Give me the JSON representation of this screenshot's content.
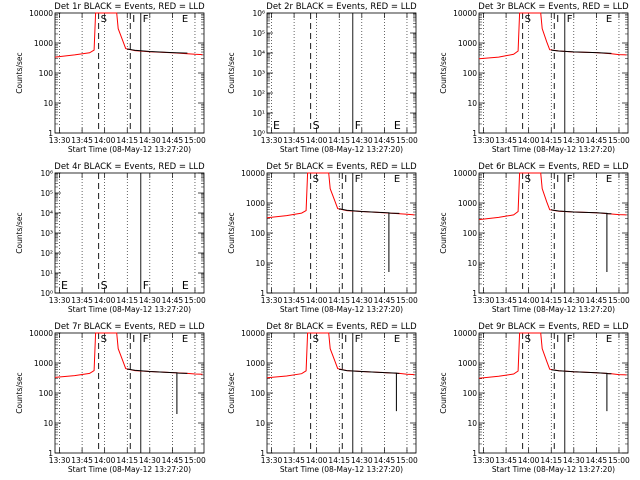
{
  "colors": {
    "events": "#000000",
    "lld": "#ff0000",
    "axis": "#000000",
    "background": "#ffffff"
  },
  "chart_data": [
    {
      "title": "Det 1r BLACK = Events, RED = LLD",
      "type": "line",
      "scale": "log",
      "ylim": [
        1,
        10000
      ],
      "yticks": [
        "1",
        "10",
        "100",
        "1000",
        "10000"
      ],
      "ylabel": "Counts/sec",
      "xlabel": "Start Time (08-May-12 13:27:20)",
      "xticks": [
        "13:30",
        "13:45",
        "14:00",
        "14:15",
        "14:30",
        "14:45",
        "15:00"
      ],
      "xlim": [
        "13:27",
        "15:06"
      ],
      "markers": [
        {
          "label": "S",
          "time": "13:56"
        },
        {
          "label": "I",
          "time": "14:17"
        },
        {
          "label": "F",
          "time": "14:24"
        },
        {
          "label": "E",
          "time": "14:50"
        }
      ],
      "series": [
        {
          "color": "red",
          "x": [
            "13:27",
            "13:40",
            "13:50",
            "13:53",
            "13:54",
            "14:08",
            "14:09",
            "14:12",
            "14:14",
            "14:20",
            "14:30",
            "14:45",
            "14:55",
            "15:00",
            "15:05"
          ],
          "y": [
            340,
            400,
            470,
            580,
            10000,
            10000,
            3000,
            1200,
            650,
            560,
            510,
            470,
            440,
            420,
            410
          ]
        },
        {
          "color": "black",
          "x": [
            "14:15",
            "14:20",
            "14:30",
            "14:45",
            "14:55"
          ],
          "y": [
            630,
            570,
            520,
            480,
            460
          ]
        }
      ]
    },
    {
      "title": "Det 2r BLACK = Events, RED = LLD",
      "type": "line",
      "scale": "log",
      "ylim": [
        1,
        1000000
      ],
      "yticks": [
        "10⁰",
        "10¹",
        "10²",
        "10³",
        "10⁴",
        "10⁵",
        "10⁶"
      ],
      "ylabel": "Counts/sec",
      "xlabel": "Start Time (08-May-12 13:27:20)",
      "xticks": [
        "13:30",
        "13:45",
        "14:00",
        "14:15",
        "14:30",
        "14:45",
        "15:00"
      ],
      "xlim": [
        "13:27",
        "15:06"
      ],
      "markers": [
        {
          "label": "E",
          "time": "13:27"
        },
        {
          "label": "S",
          "time": "13:56"
        },
        {
          "label": "F",
          "time": "14:24"
        },
        {
          "label": "E",
          "time": "14:50"
        }
      ],
      "series": []
    },
    {
      "title": "Det 3r BLACK = Events, RED = LLD",
      "type": "line",
      "scale": "log",
      "ylim": [
        1,
        10000
      ],
      "yticks": [
        "1",
        "10",
        "100",
        "1000",
        "10000"
      ],
      "ylabel": "Counts/sec",
      "xlabel": "Start Time (08-May-12 13:27:20)",
      "xticks": [
        "13:30",
        "13:45",
        "14:00",
        "14:15",
        "14:30",
        "14:45",
        "15:00"
      ],
      "xlim": [
        "13:27",
        "15:06"
      ],
      "markers": [
        {
          "label": "S",
          "time": "13:56"
        },
        {
          "label": "I",
          "time": "14:17"
        },
        {
          "label": "F",
          "time": "14:24"
        },
        {
          "label": "E",
          "time": "14:50"
        }
      ],
      "series": [
        {
          "color": "red",
          "x": [
            "13:27",
            "13:40",
            "13:50",
            "13:53",
            "13:54",
            "14:08",
            "14:09",
            "14:12",
            "14:14",
            "14:20",
            "14:30",
            "14:45",
            "14:55",
            "15:00",
            "15:05"
          ],
          "y": [
            300,
            340,
            420,
            540,
            10000,
            10000,
            3000,
            1100,
            600,
            540,
            500,
            480,
            440,
            410,
            400
          ]
        },
        {
          "color": "black",
          "x": [
            "14:15",
            "14:20",
            "14:30",
            "14:45",
            "14:55"
          ],
          "y": [
            580,
            540,
            505,
            480,
            450
          ]
        }
      ]
    },
    {
      "title": "Det 4r BLACK = Events, RED = LLD",
      "type": "line",
      "scale": "log",
      "ylim": [
        1,
        1000000
      ],
      "yticks": [
        "10⁰",
        "10¹",
        "10²",
        "10³",
        "10⁴",
        "10⁵",
        "10⁶"
      ],
      "ylabel": "Counts/sec",
      "xlabel": "Start Time (08-May-12 13:27:20)",
      "xticks": [
        "13:30",
        "13:45",
        "14:00",
        "14:15",
        "14:30",
        "14:45",
        "15:00"
      ],
      "xlim": [
        "13:27",
        "15:06"
      ],
      "markers": [
        {
          "label": "E",
          "time": "13:27"
        },
        {
          "label": "S",
          "time": "13:56"
        },
        {
          "label": "F",
          "time": "14:24"
        },
        {
          "label": "E",
          "time": "14:50"
        }
      ],
      "series": []
    },
    {
      "title": "Det 5r BLACK = Events, RED = LLD",
      "type": "line",
      "scale": "log",
      "ylim": [
        1,
        10000
      ],
      "yticks": [
        "1",
        "10",
        "100",
        "1000",
        "10000"
      ],
      "ylabel": "Counts/sec",
      "xlabel": "Start Time (08-May-12 13:27:20)",
      "xticks": [
        "13:30",
        "13:45",
        "14:00",
        "14:15",
        "14:30",
        "14:45",
        "15:00"
      ],
      "xlim": [
        "13:27",
        "15:06"
      ],
      "markers": [
        {
          "label": "S",
          "time": "13:56"
        },
        {
          "label": "I",
          "time": "14:17"
        },
        {
          "label": "F",
          "time": "14:24"
        },
        {
          "label": "E",
          "time": "14:50"
        }
      ],
      "series": [
        {
          "color": "red",
          "x": [
            "13:27",
            "13:40",
            "13:50",
            "13:53",
            "13:54",
            "14:08",
            "14:09",
            "14:12",
            "14:14",
            "14:20",
            "14:30",
            "14:45",
            "14:55",
            "15:00",
            "15:05"
          ],
          "y": [
            320,
            380,
            460,
            560,
            10000,
            10000,
            3000,
            1200,
            650,
            560,
            520,
            470,
            440,
            420,
            400
          ]
        },
        {
          "color": "black",
          "x": [
            "14:15",
            "14:20",
            "14:30",
            "14:45",
            "14:48",
            "14:48",
            "14:48",
            "14:49",
            "14:55"
          ],
          "y": [
            640,
            570,
            520,
            480,
            470,
            5,
            470,
            460,
            450
          ]
        }
      ]
    },
    {
      "title": "Det 6r BLACK = Events, RED = LLD",
      "type": "line",
      "scale": "log",
      "ylim": [
        1,
        10000
      ],
      "yticks": [
        "1",
        "10",
        "100",
        "1000",
        "10000"
      ],
      "ylabel": "Counts/sec",
      "xlabel": "Start Time (08-May-12 13:27:20)",
      "xticks": [
        "13:30",
        "13:45",
        "14:00",
        "14:15",
        "14:30",
        "14:45",
        "15:00"
      ],
      "xlim": [
        "13:27",
        "15:06"
      ],
      "markers": [
        {
          "label": "S",
          "time": "13:56"
        },
        {
          "label": "I",
          "time": "14:17"
        },
        {
          "label": "F",
          "time": "14:24"
        },
        {
          "label": "E",
          "time": "14:50"
        }
      ],
      "series": [
        {
          "color": "red",
          "x": [
            "13:27",
            "13:40",
            "13:50",
            "13:53",
            "13:54",
            "14:08",
            "14:09",
            "14:12",
            "14:14",
            "14:20",
            "14:30",
            "14:45",
            "14:55",
            "15:00",
            "15:05"
          ],
          "y": [
            280,
            330,
            400,
            520,
            10000,
            10000,
            3000,
            1100,
            600,
            530,
            500,
            470,
            430,
            410,
            400
          ]
        },
        {
          "color": "black",
          "x": [
            "14:15",
            "14:20",
            "14:30",
            "14:45",
            "14:52",
            "14:52",
            "14:52",
            "14:53",
            "14:55"
          ],
          "y": [
            590,
            540,
            500,
            470,
            450,
            5,
            450,
            440,
            440
          ]
        }
      ]
    },
    {
      "title": "Det 7r BLACK = Events, RED = LLD",
      "type": "line",
      "scale": "log",
      "ylim": [
        1,
        10000
      ],
      "yticks": [
        "1",
        "10",
        "100",
        "1000",
        "10000"
      ],
      "ylabel": "Counts/sec",
      "xlabel": "Start Time (08-May-12 13:27:20)",
      "xticks": [
        "13:30",
        "13:45",
        "14:00",
        "14:15",
        "14:30",
        "14:45",
        "15:00"
      ],
      "xlim": [
        "13:27",
        "15:06"
      ],
      "markers": [
        {
          "label": "S",
          "time": "13:56"
        },
        {
          "label": "I",
          "time": "14:17"
        },
        {
          "label": "F",
          "time": "14:24"
        },
        {
          "label": "E",
          "time": "14:50"
        }
      ],
      "series": [
        {
          "color": "red",
          "x": [
            "13:27",
            "13:40",
            "13:50",
            "13:53",
            "13:54",
            "14:08",
            "14:09",
            "14:12",
            "14:14",
            "14:20",
            "14:30",
            "14:45",
            "14:55",
            "15:00",
            "15:05"
          ],
          "y": [
            330,
            380,
            450,
            560,
            10000,
            10000,
            3000,
            1200,
            650,
            560,
            520,
            480,
            450,
            430,
            420
          ]
        },
        {
          "color": "black",
          "x": [
            "14:15",
            "14:20",
            "14:30",
            "14:45",
            "14:48",
            "14:48",
            "14:48",
            "14:49",
            "14:55"
          ],
          "y": [
            630,
            570,
            520,
            480,
            470,
            20,
            470,
            460,
            450
          ]
        }
      ]
    },
    {
      "title": "Det 8r BLACK = Events, RED = LLD",
      "type": "line",
      "scale": "log",
      "ylim": [
        1,
        10000
      ],
      "yticks": [
        "1",
        "10",
        "100",
        "1000",
        "10000"
      ],
      "ylabel": "Counts/sec",
      "xlabel": "Start Time (08-May-12 13:27:20)",
      "xticks": [
        "13:30",
        "13:45",
        "14:00",
        "14:15",
        "14:30",
        "14:45",
        "15:00"
      ],
      "xlim": [
        "13:27",
        "15:06"
      ],
      "markers": [
        {
          "label": "S",
          "time": "13:56"
        },
        {
          "label": "I",
          "time": "14:17"
        },
        {
          "label": "F",
          "time": "14:24"
        },
        {
          "label": "E",
          "time": "14:50"
        }
      ],
      "series": [
        {
          "color": "red",
          "x": [
            "13:27",
            "13:40",
            "13:50",
            "13:53",
            "13:54",
            "14:08",
            "14:09",
            "14:12",
            "14:14",
            "14:20",
            "14:30",
            "14:45",
            "14:55",
            "15:00",
            "15:05"
          ],
          "y": [
            320,
            370,
            440,
            550,
            10000,
            10000,
            3000,
            1200,
            650,
            560,
            520,
            480,
            450,
            420,
            410
          ]
        },
        {
          "color": "black",
          "x": [
            "14:15",
            "14:20",
            "14:30",
            "14:45",
            "14:53",
            "14:53",
            "14:53",
            "14:54",
            "14:55"
          ],
          "y": [
            620,
            560,
            520,
            480,
            460,
            25,
            460,
            450,
            450
          ]
        }
      ]
    },
    {
      "title": "Det 9r BLACK = Events, RED = LLD",
      "type": "line",
      "scale": "log",
      "ylim": [
        1,
        10000
      ],
      "yticks": [
        "1",
        "10",
        "100",
        "1000",
        "10000"
      ],
      "ylabel": "Counts/sec",
      "xlabel": "Start Time (08-May-12 13:27:20)",
      "xticks": [
        "13:30",
        "13:45",
        "14:00",
        "14:15",
        "14:30",
        "14:45",
        "15:00"
      ],
      "xlim": [
        "13:27",
        "15:06"
      ],
      "markers": [
        {
          "label": "S",
          "time": "13:56"
        },
        {
          "label": "I",
          "time": "14:17"
        },
        {
          "label": "F",
          "time": "14:24"
        },
        {
          "label": "E",
          "time": "14:50"
        }
      ],
      "series": [
        {
          "color": "red",
          "x": [
            "13:27",
            "13:40",
            "13:50",
            "13:53",
            "13:54",
            "14:08",
            "14:09",
            "14:12",
            "14:14",
            "14:20",
            "14:30",
            "14:45",
            "14:55",
            "15:00",
            "15:05"
          ],
          "y": [
            310,
            360,
            430,
            540,
            10000,
            10000,
            3000,
            1150,
            620,
            550,
            510,
            470,
            440,
            410,
            400
          ]
        },
        {
          "color": "black",
          "x": [
            "14:15",
            "14:20",
            "14:30",
            "14:45",
            "14:52",
            "14:52",
            "14:52",
            "14:53",
            "14:55"
          ],
          "y": [
            600,
            550,
            510,
            470,
            450,
            25,
            450,
            440,
            440
          ]
        }
      ]
    }
  ]
}
